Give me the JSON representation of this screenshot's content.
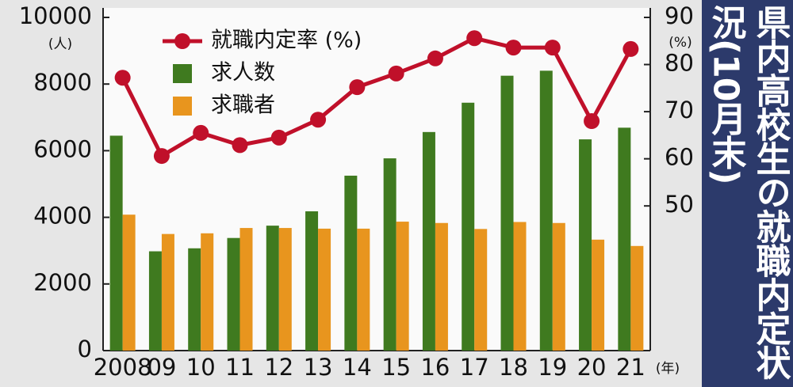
{
  "chart_data": {
    "type": "bar",
    "title": "県内高校生の就職内定状況(10月末)",
    "y_unit": "(人)",
    "y2_unit": "(%)",
    "x_unit": "(年)",
    "categories": [
      "2008",
      "09",
      "10",
      "11",
      "12",
      "13",
      "14",
      "15",
      "16",
      "17",
      "18",
      "19",
      "20",
      "21"
    ],
    "series": [
      {
        "name": "就職内定率 (%)",
        "type": "line",
        "axis": "y2",
        "color": "#c0102a",
        "values": [
          77.2,
          60.6,
          65.5,
          62.9,
          64.5,
          68.3,
          75.2,
          78.1,
          81.3,
          85.6,
          83.6,
          83.6,
          68.0,
          83.3
        ]
      },
      {
        "name": "求人数",
        "type": "bar",
        "color": "#3f7a1f",
        "values": [
          6450,
          2980,
          3070,
          3380,
          3750,
          4180,
          5250,
          5770,
          6560,
          7440,
          8250,
          8400,
          6340,
          6690
        ]
      },
      {
        "name": "求職者",
        "type": "bar",
        "color": "#e8951e",
        "values": [
          4080,
          3500,
          3520,
          3680,
          3680,
          3660,
          3660,
          3870,
          3830,
          3650,
          3860,
          3830,
          3330,
          3140
        ]
      }
    ],
    "ylim": [
      0,
      10000
    ],
    "yticks": [
      0,
      2000,
      4000,
      6000,
      8000,
      10000
    ],
    "y2lim": [
      19.3,
      90
    ],
    "y2ticks": [
      50,
      60,
      70,
      80,
      90
    ],
    "grid": false
  }
}
